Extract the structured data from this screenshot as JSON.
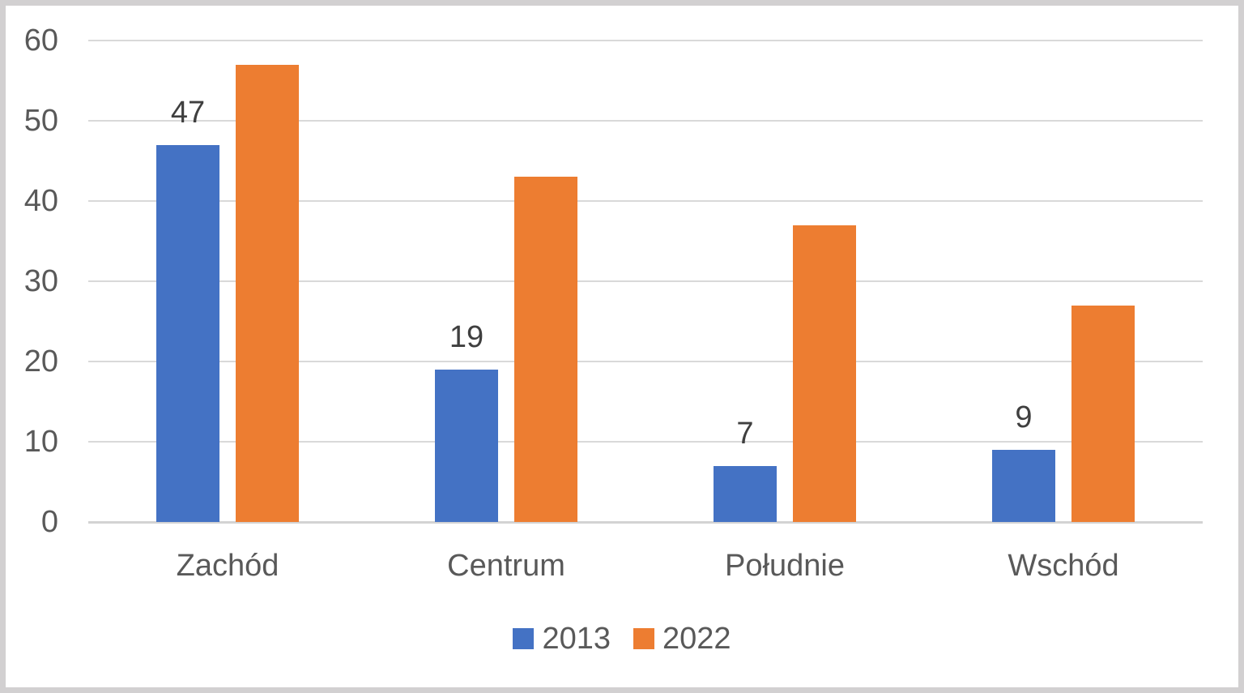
{
  "chart_data": {
    "type": "bar",
    "title": "",
    "categories": [
      "Zachód",
      "Centrum",
      "Południe",
      "Wschód"
    ],
    "series": [
      {
        "name": "2013",
        "color": "#4472C4",
        "values": [
          47,
          19,
          7,
          9
        ],
        "labels_shown": true
      },
      {
        "name": "2022",
        "color": "#ED7D31",
        "values": [
          57,
          43,
          37,
          27
        ],
        "labels_shown": false
      }
    ],
    "ylim": [
      0,
      60
    ],
    "ytick_step": 10,
    "ytick_labels": [
      "0",
      "10",
      "20",
      "30",
      "40",
      "50",
      "60"
    ],
    "grid": true,
    "legend_position": "bottom",
    "colors": {
      "gridline": "#D9D9D9",
      "axis_line": "#D3D3D3",
      "tick_text": "#595959",
      "category_text": "#595959",
      "data_label_text": "#3F3F3F",
      "frame_border": "#D2D0D1",
      "background": "#FFFFFF"
    }
  }
}
